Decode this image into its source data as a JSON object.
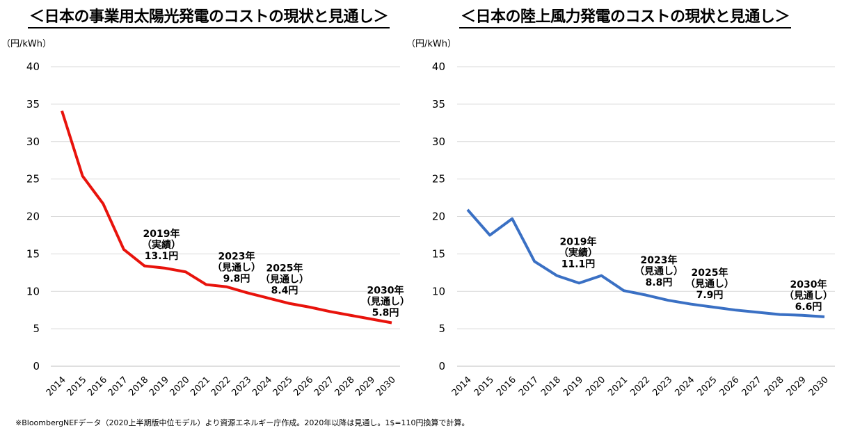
{
  "chart_data": [
    {
      "type": "line",
      "title": "＜日本の事業用太陽光発電のコストの現状と見通し＞",
      "ylabel": "（円/kWh）",
      "ylim": [
        0,
        40
      ],
      "yticks": [
        0,
        5,
        10,
        15,
        20,
        25,
        30,
        35,
        40
      ],
      "grid": true,
      "color": "#e8130c",
      "categories": [
        "2014",
        "2015",
        "2016",
        "2017",
        "2018",
        "2019",
        "2020",
        "2021",
        "2022",
        "2023",
        "2024",
        "2025",
        "2026",
        "2027",
        "2028",
        "2029",
        "2030"
      ],
      "values": [
        34.1,
        25.4,
        21.7,
        15.6,
        13.4,
        13.1,
        12.6,
        10.9,
        10.6,
        9.8,
        9.1,
        8.4,
        7.9,
        7.3,
        6.8,
        6.3,
        5.8
      ],
      "annotations": [
        {
          "year": "2019",
          "lines": [
            "2019年",
            "（実績）",
            "13.1円"
          ]
        },
        {
          "year": "2023",
          "lines": [
            "2023年",
            "（見通し）",
            "9.8円"
          ]
        },
        {
          "year": "2025",
          "lines": [
            "2025年",
            "（見通し）",
            "8.4円"
          ]
        },
        {
          "year": "2030",
          "lines": [
            "2030年",
            "（見通し）",
            "5.8円"
          ]
        }
      ]
    },
    {
      "type": "line",
      "title": "＜日本の陸上風力発電のコストの現状と見通し＞",
      "ylabel": "（円/kWh）",
      "ylim": [
        0,
        40
      ],
      "yticks": [
        0,
        5,
        10,
        15,
        20,
        25,
        30,
        35,
        40
      ],
      "grid": true,
      "color": "#3a70c4",
      "categories": [
        "2014",
        "2015",
        "2016",
        "2017",
        "2018",
        "2019",
        "2020",
        "2021",
        "2022",
        "2023",
        "2024",
        "2025",
        "2026",
        "2027",
        "2028",
        "2029",
        "2030"
      ],
      "values": [
        20.9,
        17.5,
        19.7,
        14.0,
        12.1,
        11.1,
        12.1,
        10.1,
        9.5,
        8.8,
        8.3,
        7.9,
        7.5,
        7.2,
        6.9,
        6.8,
        6.6
      ],
      "annotations": [
        {
          "year": "2019",
          "lines": [
            "2019年",
            "（実績）",
            "11.1円"
          ]
        },
        {
          "year": "2023",
          "lines": [
            "2023年",
            "（見通し）",
            "8.8円"
          ]
        },
        {
          "year": "2025",
          "lines": [
            "2025年",
            "（見通し）",
            "7.9円"
          ]
        },
        {
          "year": "2030",
          "lines": [
            "2030年",
            "（見通し）",
            "6.6円"
          ]
        }
      ]
    }
  ],
  "footnote": "※BloombergNEFデータ（2020上半期版中位モデル）より資源エネルギー庁作成。2020年以降は見通し。1$=110円換算で計算。"
}
